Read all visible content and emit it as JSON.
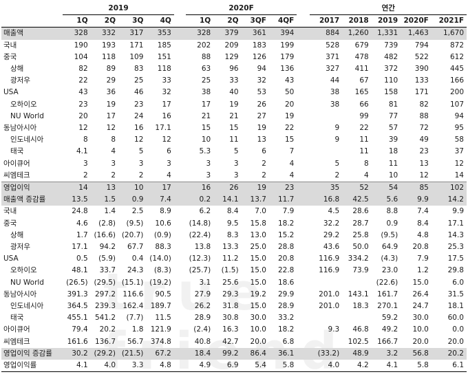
{
  "watermark": "true friend",
  "header": {
    "groups": [
      "2019",
      "2020F",
      "연간"
    ],
    "columns": [
      "1Q",
      "2Q",
      "3Q",
      "4Q",
      "1Q",
      "2Q",
      "3QF",
      "4QF",
      "2017",
      "2018",
      "2019",
      "2020F",
      "2021F"
    ]
  },
  "rows": [
    {
      "label": "매출액",
      "indent": false,
      "shade": true,
      "values": [
        "328",
        "332",
        "317",
        "353",
        "328",
        "379",
        "361",
        "394",
        "884",
        "1,260",
        "1,331",
        "1,463",
        "1,670"
      ]
    },
    {
      "label": "국내",
      "indent": false,
      "shade": false,
      "values": [
        "190",
        "193",
        "171",
        "185",
        "202",
        "209",
        "183",
        "199",
        "528",
        "679",
        "739",
        "794",
        "872"
      ]
    },
    {
      "label": "중국",
      "indent": false,
      "shade": false,
      "values": [
        "104",
        "118",
        "109",
        "151",
        "88",
        "129",
        "126",
        "179",
        "371",
        "478",
        "482",
        "522",
        "612"
      ]
    },
    {
      "label": "상해",
      "indent": true,
      "shade": false,
      "values": [
        "82",
        "89",
        "83",
        "118",
        "63",
        "96",
        "94",
        "136",
        "327",
        "411",
        "372",
        "390",
        "445"
      ]
    },
    {
      "label": "광저우",
      "indent": true,
      "shade": false,
      "values": [
        "22",
        "29",
        "25",
        "33",
        "25",
        "33",
        "32",
        "43",
        "44",
        "67",
        "110",
        "133",
        "166"
      ]
    },
    {
      "label": "USA",
      "indent": false,
      "shade": false,
      "values": [
        "43",
        "36",
        "46",
        "32",
        "38",
        "40",
        "53",
        "50",
        "38",
        "165",
        "158",
        "171",
        "200"
      ]
    },
    {
      "label": "오하이오",
      "indent": true,
      "shade": false,
      "values": [
        "23",
        "19",
        "23",
        "17",
        "17",
        "19",
        "26",
        "20",
        "38",
        "66",
        "81",
        "82",
        "107"
      ]
    },
    {
      "label": "NU World",
      "indent": true,
      "shade": false,
      "values": [
        "20",
        "17",
        "24",
        "16",
        "21",
        "21",
        "27",
        "19",
        "",
        "99",
        "77",
        "88",
        "94"
      ]
    },
    {
      "label": "동남아시아",
      "indent": false,
      "shade": false,
      "values": [
        "12",
        "12",
        "16",
        "17.1",
        "15",
        "15",
        "19",
        "22",
        "9",
        "22",
        "57",
        "72",
        "95"
      ]
    },
    {
      "label": "인도네시아",
      "indent": true,
      "shade": false,
      "values": [
        "8",
        "8",
        "12",
        "12",
        "10",
        "11",
        "13",
        "15",
        "9",
        "11",
        "39",
        "49",
        "58"
      ]
    },
    {
      "label": "태국",
      "indent": true,
      "shade": false,
      "values": [
        "4.1",
        "4",
        "5",
        "6",
        "5.3",
        "5",
        "6",
        "7",
        "",
        "11",
        "18",
        "23",
        "37"
      ]
    },
    {
      "label": "아이큐어",
      "indent": false,
      "shade": false,
      "values": [
        "3",
        "3",
        "3",
        "3",
        "3",
        "3",
        "2",
        "4",
        "5",
        "8",
        "11",
        "13",
        "12"
      ]
    },
    {
      "label": "씨엠테크",
      "indent": false,
      "shade": false,
      "values": [
        "2",
        "2",
        "2",
        "4",
        "3",
        "3",
        "2",
        "4",
        "2",
        "4",
        "10",
        "12",
        "14"
      ]
    },
    {
      "label": "영업이익",
      "indent": false,
      "shade": true,
      "values": [
        "14",
        "13",
        "10",
        "17",
        "16",
        "26",
        "19",
        "23",
        "35",
        "52",
        "54",
        "85",
        "102"
      ]
    },
    {
      "label": "매출액 증감률",
      "indent": false,
      "shade": true,
      "values": [
        "13.5",
        "1.5",
        "0.9",
        "7.4",
        "0.2",
        "14.1",
        "13.7",
        "11.7",
        "16.8",
        "42.5",
        "5.6",
        "9.9",
        "14.2"
      ]
    },
    {
      "label": "국내",
      "indent": false,
      "shade": false,
      "values": [
        "24.8",
        "1.4",
        "2.5",
        "8.9",
        "6.2",
        "8.4",
        "7.0",
        "7.9",
        "4.5",
        "28.6",
        "8.8",
        "7.4",
        "9.9"
      ]
    },
    {
      "label": "중국",
      "indent": false,
      "shade": false,
      "values": [
        "4.6",
        "(2.8)",
        "(9.5)",
        "10.6",
        "(14.8)",
        "9.5",
        "15.8",
        "18.2",
        "32.2",
        "28.7",
        "0.9",
        "8.4",
        "17.1"
      ]
    },
    {
      "label": "상해",
      "indent": true,
      "shade": false,
      "values": [
        "1.7",
        "(16.6)",
        "(20.7)",
        "(0.9)",
        "(22.4)",
        "8.3",
        "13.0",
        "15.2",
        "29.2",
        "25.8",
        "(9.5)",
        "4.8",
        "14.3"
      ]
    },
    {
      "label": "광저우",
      "indent": true,
      "shade": false,
      "values": [
        "17.1",
        "94.2",
        "67.7",
        "88.3",
        "13.8",
        "13.3",
        "25.0",
        "28.8",
        "43.6",
        "50.0",
        "64.9",
        "20.8",
        "25.3"
      ]
    },
    {
      "label": "USA",
      "indent": false,
      "shade": false,
      "values": [
        "0.5",
        "(5.9)",
        "0.4",
        "(14.0)",
        "(12.3)",
        "11.2",
        "15.0",
        "20.8",
        "116.9",
        "334.2",
        "(4.3)",
        "7.9",
        "17.5"
      ]
    },
    {
      "label": "오하이오",
      "indent": true,
      "shade": false,
      "values": [
        "48.1",
        "33.7",
        "24.3",
        "(8.3)",
        "(25.7)",
        "(1.5)",
        "15.0",
        "22.8",
        "116.9",
        "73.9",
        "23.0",
        "1.2",
        "29.8"
      ]
    },
    {
      "label": "NU World",
      "indent": true,
      "shade": false,
      "values": [
        "(26.5)",
        "(29.5)",
        "(15.1)",
        "(19.2)",
        "3.1",
        "25.6",
        "15.0",
        "18.6",
        "",
        "",
        "(22.6)",
        "15.0",
        "6.0"
      ]
    },
    {
      "label": "동남아시아",
      "indent": false,
      "shade": false,
      "values": [
        "391.3",
        "297.2",
        "116.6",
        "90.5",
        "27.9",
        "29.3",
        "19.2",
        "29.9",
        "201.0",
        "143.1",
        "161.7",
        "26.4",
        "31.5"
      ]
    },
    {
      "label": "인도네시아",
      "indent": true,
      "shade": false,
      "values": [
        "364.5",
        "239.3",
        "162.4",
        "189.7",
        "26.2",
        "31.8",
        "15.0",
        "28.9",
        "201.0",
        "18.3",
        "270.1",
        "24.7",
        "18.1"
      ]
    },
    {
      "label": "태국",
      "indent": true,
      "shade": false,
      "values": [
        "455.1",
        "541.2",
        "(7.7)",
        "11.5",
        "28.9",
        "30.8",
        "30.0",
        "33.2",
        "",
        "",
        "59.2",
        "30.0",
        "60.0"
      ]
    },
    {
      "label": "아이큐어",
      "indent": false,
      "shade": false,
      "values": [
        "79.4",
        "20.2",
        "1.8",
        "121.9",
        "(2.4)",
        "16.3",
        "10.0",
        "18.2",
        "9.3",
        "46.8",
        "49.2",
        "10.0",
        "0.0"
      ]
    },
    {
      "label": "씨엠테크",
      "indent": false,
      "shade": false,
      "values": [
        "161.6",
        "136.7",
        "56.7",
        "374.8",
        "40.8",
        "42.7",
        "20.0",
        "6.8",
        "",
        "102.5",
        "166.7",
        "20.0",
        "20.0"
      ]
    },
    {
      "label": "영업이익 증감률",
      "indent": false,
      "shade": true,
      "values": [
        "30.2",
        "(29.2)",
        "(21.5)",
        "67.2",
        "18.4",
        "99.2",
        "86.4",
        "36.1",
        "(33.2)",
        "48.9",
        "3.2",
        "56.8",
        "20.2"
      ]
    },
    {
      "label": "영업이익률",
      "indent": false,
      "shade": false,
      "values": [
        "4.1",
        "4.0",
        "3.3",
        "4.8",
        "4.9",
        "6.9",
        "5.4",
        "5.8",
        "4.0",
        "4.2",
        "4.1",
        "5.8",
        "6.1"
      ]
    }
  ]
}
